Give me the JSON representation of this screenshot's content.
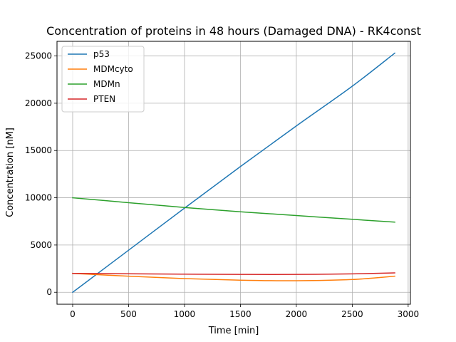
{
  "chart_data": {
    "type": "line",
    "title": "Concentration of proteins in 48 hours (Damaged DNA) - RK4const",
    "xlabel": "Time [min]",
    "ylabel": "Concentration [nM]",
    "xlim": [
      -140,
      3020
    ],
    "ylim": [
      -1265,
      26550
    ],
    "xticks": [
      0,
      500,
      1000,
      1500,
      2000,
      2500,
      3000
    ],
    "yticks": [
      0,
      5000,
      10000,
      15000,
      20000,
      25000
    ],
    "grid": true,
    "legend_position": "top-left",
    "x": [
      0,
      500,
      1000,
      1500,
      2000,
      2500,
      2880
    ],
    "series": [
      {
        "name": "p53",
        "color": "#1f77b4",
        "values": [
          0,
          4450,
          8900,
          13300,
          17600,
          21800,
          25300
        ]
      },
      {
        "name": "MDMcyto",
        "color": "#ff7f0e",
        "values": [
          2000,
          1700,
          1450,
          1280,
          1220,
          1350,
          1700
        ]
      },
      {
        "name": "MDMn",
        "color": "#2ca02c",
        "values": [
          10000,
          9480,
          8970,
          8520,
          8120,
          7720,
          7420
        ]
      },
      {
        "name": "PTEN",
        "color": "#d62728",
        "values": [
          2000,
          1960,
          1920,
          1890,
          1890,
          1950,
          2050
        ]
      }
    ]
  }
}
